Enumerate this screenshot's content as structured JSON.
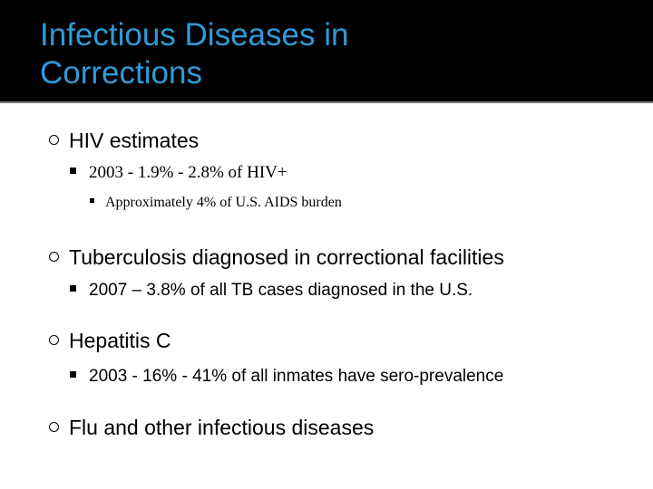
{
  "slide": {
    "title_line1": "Infectious Diseases in",
    "title_line2": "Corrections",
    "title_color": "#2f9bd6",
    "band_color": "#000000"
  },
  "bullets": [
    {
      "text": "HIV estimates",
      "children": [
        {
          "text": "2003 - 1.9% - 2.8% of HIV+",
          "children": [
            {
              "text": "Approximately 4% of U.S. AIDS burden"
            }
          ]
        }
      ]
    },
    {
      "text": "Tuberculosis diagnosed in correctional facilities",
      "children": [
        {
          "text": "2007 – 3.8% of all TB cases diagnosed in the U.S."
        }
      ]
    },
    {
      "text": "Hepatitis C",
      "children": [
        {
          "text": "2003 - 16% - 41% of all inmates have sero-prevalence"
        }
      ]
    },
    {
      "text": "Flu and other infectious diseases"
    }
  ]
}
